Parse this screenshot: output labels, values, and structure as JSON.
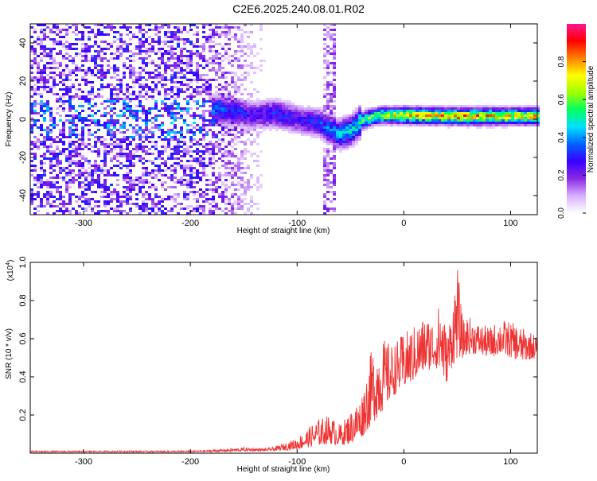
{
  "title": "C2E6.2025.240.08.01.R02",
  "chart_data": [
    {
      "type": "heatmap",
      "name": "spectrogram",
      "xlabel": "Height of straight line (km)",
      "ylabel": "Frequency (Hz)",
      "xlim": [
        -350,
        125
      ],
      "ylim": [
        -50,
        50
      ],
      "xticks": [
        -300,
        -200,
        -100,
        0,
        100
      ],
      "yticks": [
        -40,
        -20,
        0,
        20,
        40
      ],
      "colorbar": {
        "label": "Normalized spectral amplitude",
        "range": [
          0,
          1
        ],
        "ticks": [
          0.0,
          0.2,
          0.4,
          0.6,
          0.8
        ],
        "tick_labels": [
          "0.0",
          "0.2",
          "0.4",
          "0.6",
          "0.8"
        ],
        "stops": [
          "#ffffff",
          "#d8b0ff",
          "#8a2be2",
          "#3a00ff",
          "#0060ff",
          "#00e0ff",
          "#00ff60",
          "#a0ff00",
          "#ffff00",
          "#ff8000",
          "#ff0000",
          "#ff1493"
        ]
      },
      "ridge": {
        "x": [
          -180,
          -160,
          -140,
          -120,
          -100,
          -80,
          -60,
          -50,
          -45,
          -40,
          -30,
          -20,
          0,
          50,
          100,
          125
        ],
        "y": [
          5,
          4,
          2,
          3,
          0,
          -2,
          -8,
          -6,
          -4,
          -1,
          1,
          2,
          2,
          1.5,
          1.5,
          1.5
        ],
        "amplitude": [
          0.35,
          0.3,
          0.25,
          0.3,
          0.25,
          0.3,
          0.4,
          0.45,
          0.45,
          0.55,
          0.6,
          0.6,
          0.7,
          0.75,
          0.7,
          0.7
        ]
      },
      "noise_region_x": [
        -350,
        -120
      ],
      "vertical_stripe_x": -70
    },
    {
      "type": "line",
      "name": "snr",
      "xlabel": "Height of straight line (km)",
      "ylabel": "SNR (10 * v/v)",
      "multiplier_prefix": "(x10",
      "multiplier_exp": "4",
      "multiplier_suffix": ")",
      "xlim": [
        -350,
        125
      ],
      "ylim": [
        0,
        1.0
      ],
      "xticks": [
        -300,
        -200,
        -100,
        0,
        100
      ],
      "yticks": [
        0.2,
        0.4,
        0.6,
        0.8,
        1.0
      ],
      "color": "#ee3333",
      "envelope": {
        "x": [
          -350,
          -200,
          -170,
          -150,
          -130,
          -120,
          -100,
          -80,
          -70,
          -60,
          -50,
          -40,
          -30,
          -20,
          -10,
          0,
          10,
          20,
          30,
          35,
          40,
          45,
          50,
          55,
          60,
          70,
          80,
          90,
          100,
          110,
          125
        ],
        "low": [
          0.005,
          0.005,
          0.008,
          0.01,
          0.01,
          0.012,
          0.02,
          0.04,
          0.05,
          0.04,
          0.05,
          0.08,
          0.15,
          0.22,
          0.3,
          0.34,
          0.38,
          0.43,
          0.45,
          0.4,
          0.37,
          0.45,
          0.5,
          0.5,
          0.52,
          0.52,
          0.5,
          0.52,
          0.5,
          0.48,
          0.5
        ],
        "high": [
          0.012,
          0.013,
          0.02,
          0.03,
          0.025,
          0.035,
          0.08,
          0.18,
          0.2,
          0.15,
          0.22,
          0.3,
          0.55,
          0.6,
          0.57,
          0.63,
          0.67,
          0.72,
          0.7,
          0.85,
          0.62,
          0.78,
          1.0,
          0.7,
          0.72,
          0.68,
          0.66,
          0.7,
          0.69,
          0.66,
          0.62
        ]
      }
    }
  ]
}
